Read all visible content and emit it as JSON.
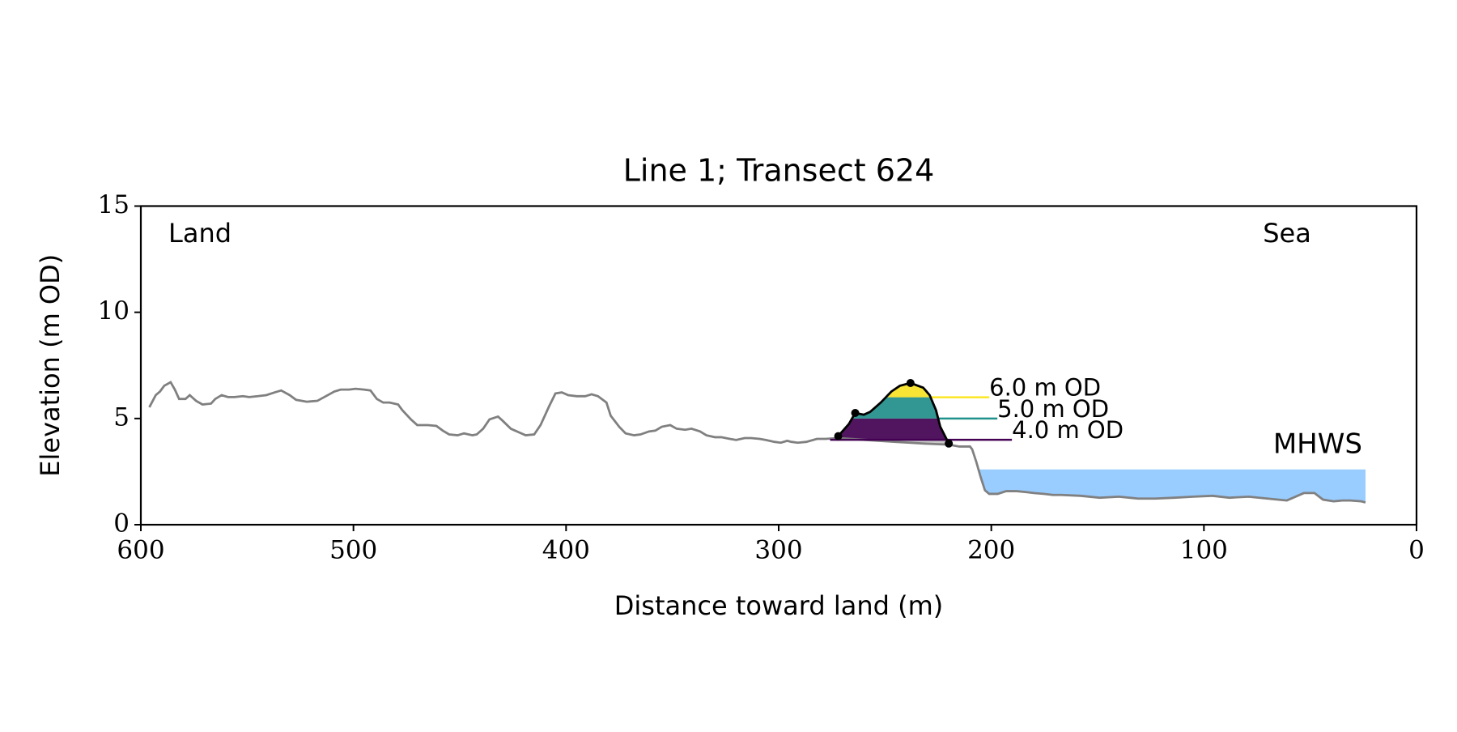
{
  "chart_data": {
    "type": "line",
    "title": "Line 1; Transect 624",
    "xlabel": "Distance toward land (m)",
    "ylabel": "Elevation (m OD)",
    "xlim": [
      600,
      0
    ],
    "ylim": [
      0,
      15
    ],
    "xticks": [
      600,
      500,
      400,
      300,
      200,
      100,
      0
    ],
    "yticks": [
      0,
      5,
      10,
      15
    ],
    "annotations": [
      "Land",
      "Sea"
    ],
    "profile": {
      "color": "#808080",
      "x": [
        596,
        593,
        591,
        589,
        586,
        584,
        582,
        579,
        577,
        574,
        571,
        567,
        565,
        562,
        559,
        556,
        552,
        549,
        545,
        541,
        537,
        534,
        530,
        527,
        522,
        517,
        513,
        509,
        506,
        502,
        499,
        495,
        492,
        489,
        486,
        483,
        479,
        477,
        473,
        470,
        465,
        461,
        458,
        455,
        451,
        448,
        444,
        442,
        439,
        436,
        432,
        430,
        426,
        422,
        419,
        415,
        412,
        408,
        405,
        402,
        399,
        395,
        391,
        388,
        385,
        381,
        379,
        375,
        372,
        368,
        365,
        361,
        358,
        355,
        351,
        348,
        344,
        341,
        337,
        334,
        330,
        327,
        323,
        320,
        316,
        313,
        309,
        306,
        302,
        299,
        296,
        294,
        291,
        287,
        282,
        278,
        272,
        259,
        245,
        232,
        220,
        215,
        210,
        209,
        207,
        205,
        203,
        201,
        197,
        193,
        188,
        184,
        180,
        175,
        171,
        167,
        158,
        149,
        140,
        131,
        123,
        114,
        105,
        96,
        88,
        79,
        70,
        61,
        53,
        48,
        44,
        39,
        35,
        31,
        26,
        24
      ],
      "values": [
        5.53,
        6.1,
        6.27,
        6.54,
        6.71,
        6.36,
        5.92,
        5.92,
        6.1,
        5.83,
        5.66,
        5.7,
        5.92,
        6.1,
        6.01,
        6.01,
        6.05,
        6.01,
        6.05,
        6.1,
        6.23,
        6.32,
        6.1,
        5.88,
        5.79,
        5.83,
        6.05,
        6.27,
        6.36,
        6.36,
        6.4,
        6.36,
        6.32,
        5.92,
        5.75,
        5.75,
        5.66,
        5.39,
        4.96,
        4.69,
        4.69,
        4.65,
        4.43,
        4.25,
        4.21,
        4.3,
        4.21,
        4.25,
        4.52,
        4.96,
        5.09,
        4.91,
        4.52,
        4.34,
        4.21,
        4.25,
        4.69,
        5.57,
        6.18,
        6.23,
        6.1,
        6.05,
        6.05,
        6.14,
        6.05,
        5.75,
        5.13,
        4.61,
        4.3,
        4.21,
        4.25,
        4.39,
        4.43,
        4.61,
        4.69,
        4.52,
        4.47,
        4.52,
        4.39,
        4.21,
        4.12,
        4.12,
        4.04,
        3.99,
        4.08,
        4.08,
        4.04,
        3.99,
        3.9,
        3.86,
        3.95,
        3.9,
        3.86,
        3.9,
        4.04,
        4.04,
        4.08,
        3.99,
        3.9,
        3.82,
        3.77,
        3.68,
        3.68,
        3.55,
        2.94,
        2.24,
        1.62,
        1.45,
        1.45,
        1.58,
        1.58,
        1.54,
        1.49,
        1.45,
        1.4,
        1.4,
        1.36,
        1.27,
        1.32,
        1.23,
        1.23,
        1.27,
        1.32,
        1.36,
        1.27,
        1.32,
        1.23,
        1.14,
        1.49,
        1.49,
        1.18,
        1.1,
        1.14,
        1.14,
        1.1,
        1.05
      ]
    },
    "dune": {
      "color": "#000000",
      "x": [
        272,
        267,
        264,
        260,
        257,
        252,
        247,
        243,
        238,
        232,
        229,
        226,
        224,
        220
      ],
      "values": [
        4.17,
        4.74,
        5.26,
        5.18,
        5.31,
        5.75,
        6.27,
        6.54,
        6.67,
        6.45,
        6.1,
        5.39,
        4.61,
        3.82
      ]
    },
    "dune_points": {
      "color": "#000000",
      "x": [
        272,
        264,
        238,
        220
      ],
      "values": [
        4.17,
        5.26,
        6.67,
        3.82
      ]
    },
    "levels": [
      {
        "value": 4,
        "label": "4.0 m OD",
        "color": "#440154"
      },
      {
        "value": 5,
        "label": "5.0 m OD",
        "color": "#21918c"
      },
      {
        "value": 6,
        "label": "6.0 m OD",
        "color": "#fde725"
      }
    ],
    "mhws": {
      "value": 2.6,
      "label": "MHWS",
      "color": "#99ccff",
      "label_color": "#6699cc"
    }
  }
}
